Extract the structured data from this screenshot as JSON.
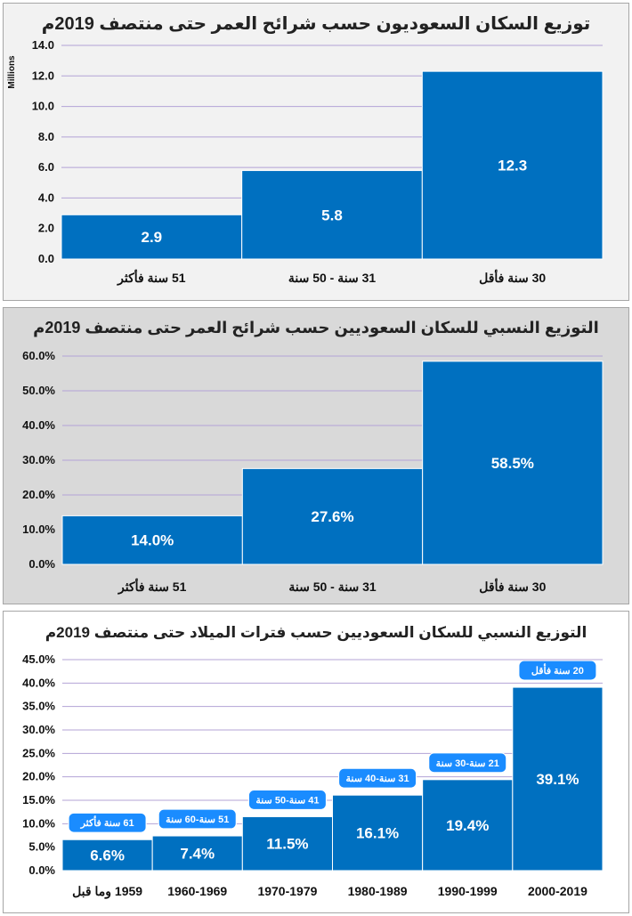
{
  "chart_data": [
    {
      "type": "bar",
      "title": "توزيع السكان السعوديون حسب شرائح العمر حتى منتصف 2019م",
      "ylabel": "Millions",
      "ylim": [
        0,
        14
      ],
      "y_ticks": [
        "0.0",
        "2.0",
        "4.0",
        "6.0",
        "8.0",
        "10.0",
        "12.0",
        "14.0"
      ],
      "categories": [
        "51 سنة فأكثر",
        "31 سنة - 50 سنة",
        "30 سنة فأقل"
      ],
      "values": [
        2.9,
        5.8,
        12.3
      ],
      "data_labels": [
        "2.9",
        "5.8",
        "12.3"
      ],
      "grid": true
    },
    {
      "type": "bar",
      "title": "التوزيع النسبي للسكان السعوديين حسب شرائح العمر حتى منتصف 2019م",
      "ylim": [
        0,
        60
      ],
      "y_ticks": [
        "0.0%",
        "10.0%",
        "20.0%",
        "30.0%",
        "40.0%",
        "50.0%",
        "60.0%"
      ],
      "categories": [
        "51 سنة فأكثر",
        "31 سنة - 50 سنة",
        "30 سنة فأقل"
      ],
      "values": [
        14.0,
        27.6,
        58.5
      ],
      "data_labels": [
        "14.0%",
        "27.6%",
        "58.5%"
      ],
      "grid": true
    },
    {
      "type": "bar",
      "title": "التوزيع النسبي للسكان السعوديين حسب فترات الميلاد حتى منتصف 2019م",
      "ylim": [
        0,
        45
      ],
      "y_ticks": [
        "0.0%",
        "5.0%",
        "10.0%",
        "15.0%",
        "20.0%",
        "25.0%",
        "30.0%",
        "35.0%",
        "40.0%",
        "45.0%"
      ],
      "categories": [
        "1959 وما قبل",
        "1960-1969",
        "1970-1979",
        "1980-1989",
        "1990-1999",
        "2000-2019"
      ],
      "values": [
        6.6,
        7.4,
        11.5,
        16.1,
        19.4,
        39.1
      ],
      "data_labels": [
        "6.6%",
        "7.4%",
        "11.5%",
        "16.1%",
        "19.4%",
        "39.1%"
      ],
      "callouts": [
        "61 سنة فأكثر",
        "51 سنة-60 سنة",
        "41 سنة-50 سنة",
        "31 سنة-40 سنة",
        "21 سنة-30 سنة",
        "20 سنة فأقل"
      ],
      "grid": true
    }
  ],
  "colors": {
    "bar": "#0070c0",
    "callout": "#1a8cff",
    "grid": "#b3a3d6"
  }
}
